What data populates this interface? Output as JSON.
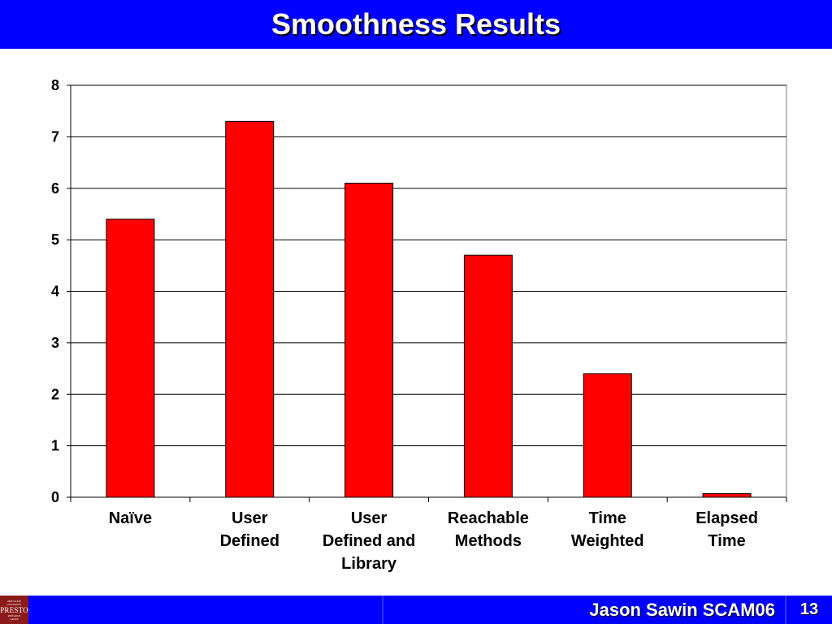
{
  "slide": {
    "title": "Smoothness Results",
    "footer_text": "Jason Sawin SCAM06",
    "page_number": "13",
    "logo": {
      "line1": "OHIO STATE",
      "line2": "UNIVERSITY",
      "name": "PRESTO",
      "line3": "RESEARCH",
      "line4": "GROUP"
    }
  },
  "colors": {
    "title_bar": "#0000ff",
    "bar_fill": "#ff0000",
    "logo_bg": "#8b1a1a"
  },
  "chart_data": {
    "type": "bar",
    "title": "",
    "xlabel": "",
    "ylabel": "",
    "categories": [
      [
        "Naïve"
      ],
      [
        "User",
        "Defined"
      ],
      [
        "User",
        "Defined and",
        "Library"
      ],
      [
        "Reachable",
        "Methods"
      ],
      [
        "Time",
        "Weighted"
      ],
      [
        "Elapsed",
        "Time"
      ]
    ],
    "values": [
      5.4,
      7.3,
      6.1,
      4.7,
      2.4,
      0.07
    ],
    "ylim": [
      0,
      8
    ],
    "yticks": [
      "0",
      "1",
      "2",
      "3",
      "4",
      "5",
      "6",
      "7",
      "8"
    ],
    "grid": true,
    "legend": "none"
  }
}
